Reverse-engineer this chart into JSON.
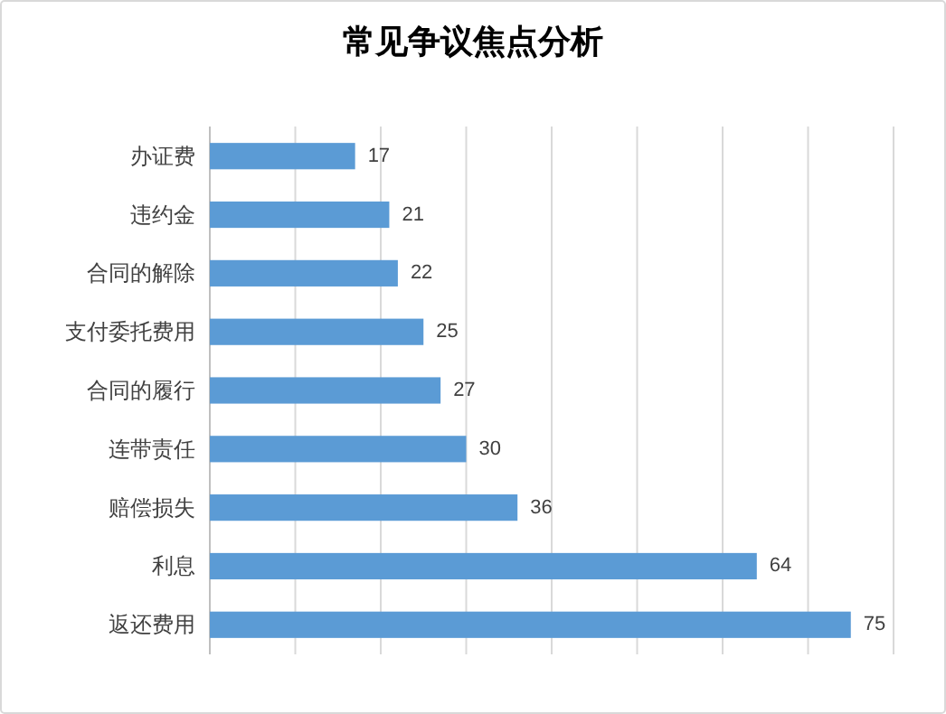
{
  "chart_data": {
    "type": "bar",
    "orientation": "horizontal",
    "title": "常见争议焦点分析",
    "categories": [
      "办证费",
      "违约金",
      "合同的解除",
      "支付委托费用",
      "合同的履行",
      "连带责任",
      "赔偿损失",
      "利息",
      "返还费用"
    ],
    "values": [
      17,
      21,
      22,
      25,
      27,
      30,
      36,
      64,
      75
    ],
    "color": "#5b9bd5",
    "data_labels": true,
    "grid": "x",
    "tick_labels": "y",
    "xlim": [
      0,
      80
    ],
    "xticks": [
      {
        "value": 0,
        "label": null
      },
      {
        "value": 10,
        "label": null
      },
      {
        "value": 20,
        "label": null
      },
      {
        "value": 30,
        "label": null
      },
      {
        "value": 40,
        "label": null
      },
      {
        "value": 50,
        "label": null
      },
      {
        "value": 60,
        "label": null
      },
      {
        "value": 70,
        "label": null
      },
      {
        "value": 80,
        "label": null
      }
    ]
  }
}
